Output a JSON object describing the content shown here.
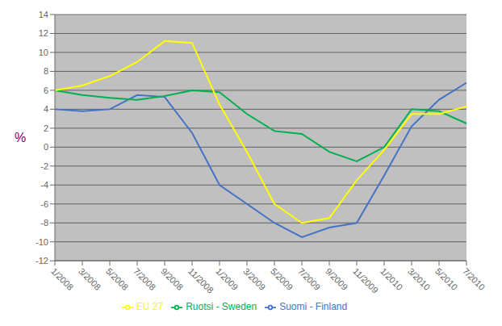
{
  "chart_data": {
    "type": "line",
    "ylabel": "%",
    "categories": [
      "1/2008",
      "3/2008",
      "5/2008",
      "7/2008",
      "9/2008",
      "11/2008",
      "1/2009",
      "3/2009",
      "5/2009",
      "7/2009",
      "9/2009",
      "11/2009",
      "1/2010",
      "3/2010",
      "5/2010",
      "7/2010"
    ],
    "series": [
      {
        "name": "Suomi - Finland",
        "color": "#4472c4",
        "values": [
          4.0,
          3.8,
          4.0,
          5.5,
          5.3,
          1.5,
          -4.0,
          -6.0,
          -8.0,
          -9.5,
          -8.5,
          -8.0,
          -3.0,
          2.2,
          5.0,
          6.8
        ]
      },
      {
        "name": "Ruotsi - Sweden",
        "color": "#00b050",
        "values": [
          6.0,
          5.5,
          5.2,
          5.0,
          5.4,
          6.0,
          5.8,
          3.5,
          1.7,
          1.4,
          -0.5,
          -1.5,
          0.0,
          4.0,
          3.8,
          2.5
        ]
      },
      {
        "name": "EU 27",
        "color": "#ffff00",
        "values": [
          6.0,
          6.5,
          7.5,
          9.0,
          11.2,
          11.0,
          4.5,
          -0.5,
          -6.0,
          -8.0,
          -7.5,
          -3.5,
          -0.3,
          3.5,
          3.5,
          4.3
        ]
      }
    ],
    "ylim": [
      -12,
      14
    ],
    "yticks": [
      -12,
      -10,
      -8,
      -6,
      -4,
      -2,
      0,
      2,
      4,
      6,
      8,
      10,
      12,
      14
    ],
    "grid": true,
    "legend": "bottom"
  }
}
